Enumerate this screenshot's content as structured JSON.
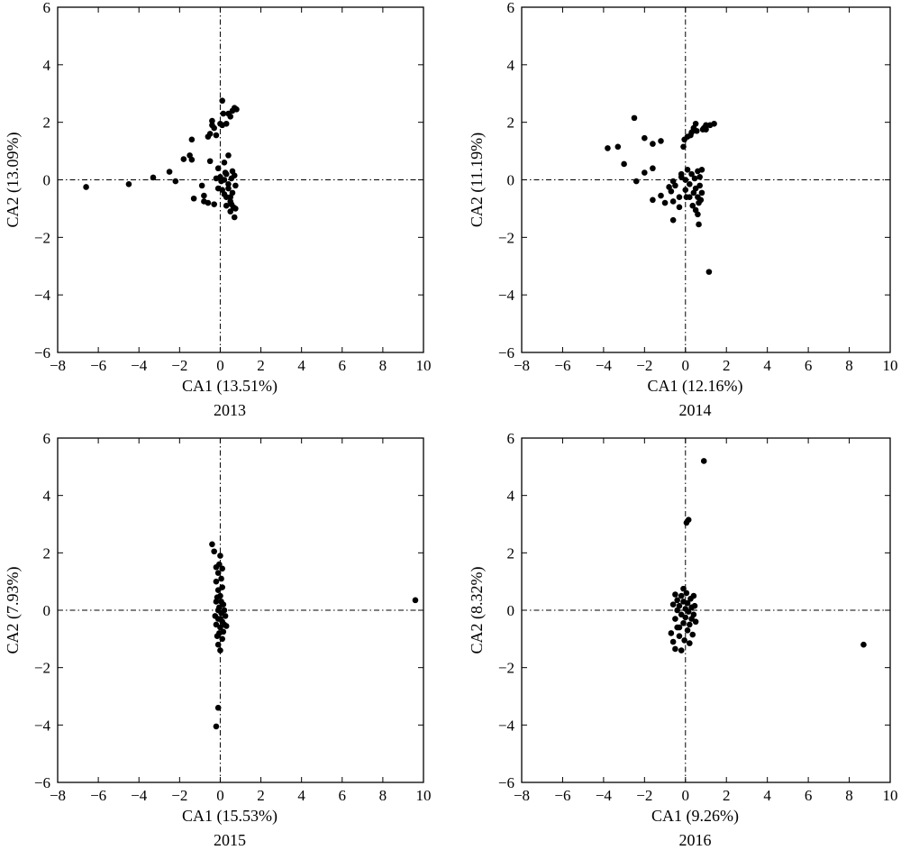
{
  "chart_data": [
    {
      "type": "scatter",
      "year_label": "2013",
      "xlabel": "CA1 (13.51%)",
      "ylabel": "CA2 (13.09%)",
      "xlim": [
        -8,
        10
      ],
      "ylim": [
        -6,
        6
      ],
      "xticks": [
        "−8",
        "−6",
        "−4",
        "−2",
        "0",
        "2",
        "4",
        "6",
        "8",
        "10"
      ],
      "yticks": [
        "−6",
        "−4",
        "−2",
        "0",
        "2",
        "4",
        "6"
      ],
      "grid": false,
      "reference_lines": {
        "x": 0,
        "y": 0
      },
      "points": [
        [
          -6.6,
          -0.25
        ],
        [
          -4.5,
          -0.15
        ],
        [
          -3.3,
          0.08
        ],
        [
          -2.5,
          0.28
        ],
        [
          -2.2,
          -0.05
        ],
        [
          -1.8,
          0.72
        ],
        [
          -1.5,
          0.85
        ],
        [
          -1.4,
          0.7
        ],
        [
          -1.4,
          1.4
        ],
        [
          -1.3,
          -0.65
        ],
        [
          -0.9,
          -0.2
        ],
        [
          -0.8,
          -0.55
        ],
        [
          -0.8,
          -0.75
        ],
        [
          -0.6,
          1.5
        ],
        [
          -0.6,
          -0.8
        ],
        [
          -0.5,
          0.65
        ],
        [
          -0.5,
          1.6
        ],
        [
          -0.4,
          1.9
        ],
        [
          -0.4,
          2.05
        ],
        [
          -0.3,
          1.8
        ],
        [
          -0.3,
          -0.85
        ],
        [
          -0.2,
          1.55
        ],
        [
          -0.2,
          0.05
        ],
        [
          -0.1,
          -0.3
        ],
        [
          -0.1,
          0.4
        ],
        [
          0.0,
          1.95
        ],
        [
          0.0,
          0.1
        ],
        [
          0.05,
          -0.05
        ],
        [
          0.1,
          2.75
        ],
        [
          0.1,
          1.9
        ],
        [
          0.1,
          -0.35
        ],
        [
          0.2,
          0.0
        ],
        [
          0.2,
          0.6
        ],
        [
          0.2,
          -0.5
        ],
        [
          0.3,
          1.95
        ],
        [
          0.3,
          0.2
        ],
        [
          0.3,
          -0.9
        ],
        [
          0.4,
          2.3
        ],
        [
          0.4,
          -0.15
        ],
        [
          0.4,
          0.85
        ],
        [
          0.4,
          -0.3
        ],
        [
          0.5,
          2.2
        ],
        [
          0.5,
          -0.6
        ],
        [
          0.5,
          -1.1
        ],
        [
          0.55,
          0.05
        ],
        [
          0.6,
          0.3
        ],
        [
          0.6,
          2.4
        ],
        [
          0.6,
          -0.45
        ],
        [
          0.65,
          -0.95
        ],
        [
          0.7,
          -1.3
        ],
        [
          0.7,
          2.5
        ],
        [
          0.7,
          0.15
        ],
        [
          0.75,
          -1.0
        ],
        [
          0.75,
          -0.2
        ],
        [
          0.8,
          2.45
        ],
        [
          0.5,
          -0.75
        ],
        [
          0.3,
          -0.6
        ],
        [
          0.55,
          -0.85
        ],
        [
          0.25,
          0.25
        ],
        [
          0.15,
          2.3
        ]
      ]
    },
    {
      "type": "scatter",
      "year_label": "2014",
      "xlabel": "CA1 (12.16%)",
      "ylabel": "CA2 (11.19%)",
      "xlim": [
        -8,
        10
      ],
      "ylim": [
        -6,
        6
      ],
      "xticks": [
        "−8",
        "−6",
        "−4",
        "−2",
        "0",
        "2",
        "4",
        "6",
        "8",
        "10"
      ],
      "yticks": [
        "−6",
        "−4",
        "−2",
        "0",
        "2",
        "4",
        "6"
      ],
      "grid": false,
      "reference_lines": {
        "x": 0,
        "y": 0
      },
      "points": [
        [
          -3.8,
          1.1
        ],
        [
          -3.3,
          1.15
        ],
        [
          -3.0,
          0.55
        ],
        [
          -2.5,
          2.15
        ],
        [
          -2.4,
          -0.05
        ],
        [
          -2.0,
          1.45
        ],
        [
          -2.0,
          0.25
        ],
        [
          -1.6,
          1.25
        ],
        [
          -1.6,
          0.4
        ],
        [
          -1.6,
          -0.7
        ],
        [
          -1.2,
          1.35
        ],
        [
          -1.2,
          -0.55
        ],
        [
          -1.0,
          -0.8
        ],
        [
          -0.8,
          -0.25
        ],
        [
          -0.7,
          -0.4
        ],
        [
          -0.6,
          -0.05
        ],
        [
          -0.6,
          -0.75
        ],
        [
          -0.6,
          -1.4
        ],
        [
          -0.5,
          -0.2
        ],
        [
          -0.3,
          -0.6
        ],
        [
          -0.3,
          -0.95
        ],
        [
          -0.2,
          0.2
        ],
        [
          -0.2,
          0.1
        ],
        [
          -0.1,
          1.15
        ],
        [
          -0.05,
          1.4
        ],
        [
          0.0,
          -0.35
        ],
        [
          0.0,
          0.0
        ],
        [
          0.05,
          -0.6
        ],
        [
          0.1,
          1.5
        ],
        [
          0.1,
          0.35
        ],
        [
          0.2,
          -0.15
        ],
        [
          0.2,
          -0.6
        ],
        [
          0.25,
          1.55
        ],
        [
          0.3,
          1.65
        ],
        [
          0.3,
          0.2
        ],
        [
          0.35,
          -0.9
        ],
        [
          0.4,
          1.8
        ],
        [
          0.4,
          -0.45
        ],
        [
          0.45,
          0.05
        ],
        [
          0.5,
          1.95
        ],
        [
          0.5,
          -0.3
        ],
        [
          0.5,
          -1.05
        ],
        [
          0.55,
          1.7
        ],
        [
          0.6,
          0.3
        ],
        [
          0.6,
          -0.6
        ],
        [
          0.6,
          -1.2
        ],
        [
          0.65,
          -0.8
        ],
        [
          0.65,
          -1.55
        ],
        [
          0.7,
          0.1
        ],
        [
          0.7,
          -0.2
        ],
        [
          0.75,
          -0.7
        ],
        [
          0.8,
          -0.45
        ],
        [
          0.8,
          0.35
        ],
        [
          0.85,
          1.75
        ],
        [
          0.9,
          1.8
        ],
        [
          1.0,
          1.75
        ],
        [
          1.0,
          1.9
        ],
        [
          1.15,
          -3.2
        ],
        [
          1.2,
          1.9
        ],
        [
          1.4,
          1.95
        ]
      ]
    },
    {
      "type": "scatter",
      "year_label": "2015",
      "xlabel": "CA1 (15.53%)",
      "ylabel": "CA2 (7.93%)",
      "xlim": [
        -8,
        10
      ],
      "ylim": [
        -6,
        6
      ],
      "xticks": [
        "−8",
        "−6",
        "−4",
        "−2",
        "0",
        "2",
        "4",
        "6",
        "8",
        "10"
      ],
      "yticks": [
        "−6",
        "−4",
        "−2",
        "0",
        "2",
        "4",
        "6"
      ],
      "grid": false,
      "reference_lines": {
        "x": 0,
        "y": 0
      },
      "points": [
        [
          -0.4,
          2.3
        ],
        [
          -0.3,
          2.05
        ],
        [
          -0.2,
          1.5
        ],
        [
          -0.2,
          1.0
        ],
        [
          -0.2,
          0.3
        ],
        [
          -0.25,
          -0.2
        ],
        [
          -0.2,
          -0.5
        ],
        [
          -0.15,
          -0.9
        ],
        [
          -0.1,
          1.3
        ],
        [
          -0.1,
          0.7
        ],
        [
          -0.1,
          -0.3
        ],
        [
          -0.1,
          -1.2
        ],
        [
          -0.05,
          1.6
        ],
        [
          -0.05,
          0.1
        ],
        [
          0.0,
          1.9
        ],
        [
          0.0,
          0.5
        ],
        [
          0.0,
          -0.6
        ],
        [
          0.0,
          -1.4
        ],
        [
          0.05,
          1.1
        ],
        [
          0.05,
          -0.1
        ],
        [
          0.1,
          0.8
        ],
        [
          0.1,
          1.45
        ],
        [
          0.1,
          -0.4
        ],
        [
          0.1,
          -1.0
        ],
        [
          0.15,
          0.2
        ],
        [
          0.15,
          -0.75
        ],
        [
          0.2,
          0.0
        ],
        [
          0.2,
          -0.5
        ],
        [
          0.25,
          -0.2
        ],
        [
          0.3,
          -0.55
        ],
        [
          -0.15,
          0.45
        ],
        [
          -0.05,
          -0.8
        ],
        [
          0.05,
          0.3
        ],
        [
          0.0,
          -0.3
        ],
        [
          -0.1,
          0.0
        ],
        [
          -0.1,
          -3.4
        ],
        [
          -0.2,
          -4.05
        ],
        [
          9.6,
          0.35
        ]
      ]
    },
    {
      "type": "scatter",
      "year_label": "2016",
      "xlabel": "CA1 (9.26%)",
      "ylabel": "CA2 (8.32%)",
      "xlim": [
        -8,
        10
      ],
      "ylim": [
        -6,
        6
      ],
      "xticks": [
        "−8",
        "−6",
        "−4",
        "−2",
        "0",
        "2",
        "4",
        "6",
        "8",
        "10"
      ],
      "yticks": [
        "−6",
        "−4",
        "−2",
        "0",
        "2",
        "4",
        "6"
      ],
      "grid": false,
      "reference_lines": {
        "x": 0,
        "y": 0
      },
      "points": [
        [
          -0.7,
          -0.8
        ],
        [
          -0.6,
          0.2
        ],
        [
          -0.6,
          -1.1
        ],
        [
          -0.5,
          0.55
        ],
        [
          -0.5,
          -0.3
        ],
        [
          -0.5,
          -1.35
        ],
        [
          -0.4,
          0.0
        ],
        [
          -0.4,
          0.35
        ],
        [
          -0.4,
          -0.6
        ],
        [
          -0.3,
          0.15
        ],
        [
          -0.3,
          -0.9
        ],
        [
          -0.2,
          0.5
        ],
        [
          -0.2,
          -0.15
        ],
        [
          -0.2,
          -1.4
        ],
        [
          -0.1,
          0.75
        ],
        [
          -0.1,
          0.3
        ],
        [
          -0.1,
          -0.45
        ],
        [
          -0.05,
          -1.05
        ],
        [
          0.0,
          0.05
        ],
        [
          0.0,
          -0.25
        ],
        [
          0.05,
          0.6
        ],
        [
          0.1,
          -0.7
        ],
        [
          0.1,
          0.25
        ],
        [
          0.15,
          -0.05
        ],
        [
          0.2,
          -0.5
        ],
        [
          0.2,
          -1.15
        ],
        [
          0.25,
          0.4
        ],
        [
          0.3,
          0.1
        ],
        [
          0.3,
          -0.3
        ],
        [
          0.35,
          -0.85
        ],
        [
          0.4,
          0.5
        ],
        [
          0.4,
          -0.15
        ],
        [
          0.45,
          0.15
        ],
        [
          0.5,
          -0.4
        ],
        [
          -0.3,
          -0.6
        ],
        [
          0.05,
          3.05
        ],
        [
          0.15,
          3.15
        ],
        [
          0.9,
          5.2
        ],
        [
          8.7,
          -1.2
        ]
      ]
    }
  ]
}
